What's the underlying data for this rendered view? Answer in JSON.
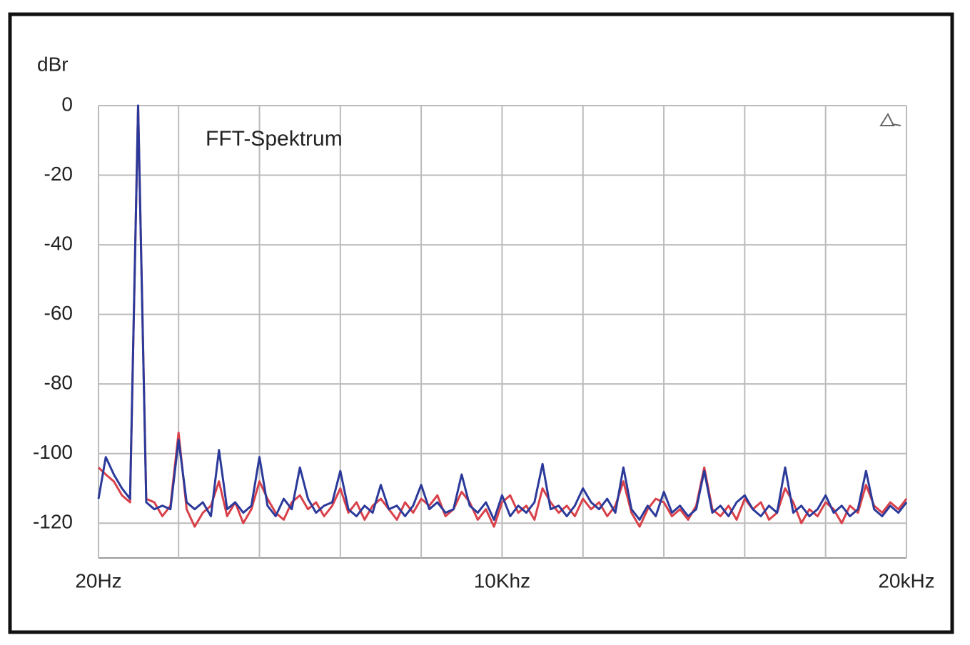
{
  "chart_data": {
    "type": "line",
    "title": "FFT-Spektrum",
    "y_label": "dBr",
    "x": [
      20,
      200,
      400,
      600,
      800,
      1000,
      1200,
      1400,
      1600,
      1800,
      2000,
      2200,
      2400,
      2600,
      2800,
      3000,
      3200,
      3400,
      3600,
      3800,
      4000,
      4200,
      4400,
      4600,
      4800,
      5000,
      5200,
      5400,
      5600,
      5800,
      6000,
      6200,
      6400,
      6600,
      6800,
      7000,
      7200,
      7400,
      7600,
      7800,
      8000,
      8200,
      8400,
      8600,
      8800,
      9000,
      9200,
      9400,
      9600,
      9800,
      10000,
      10200,
      10400,
      10600,
      10800,
      11000,
      11200,
      11400,
      11600,
      11800,
      12000,
      12200,
      12400,
      12600,
      12800,
      13000,
      13200,
      13400,
      13600,
      13800,
      14000,
      14200,
      14400,
      14600,
      14800,
      15000,
      15200,
      15400,
      15600,
      15800,
      16000,
      16200,
      16400,
      16600,
      16800,
      17000,
      17200,
      17400,
      17600,
      17800,
      18000,
      18200,
      18400,
      18600,
      18800,
      19000,
      19200,
      19400,
      19600,
      19800,
      20000
    ],
    "series": [
      {
        "color": "#d9414a",
        "values": [
          -104,
          -106,
          -108,
          -112,
          -114,
          0,
          -113,
          -114,
          -118,
          -115,
          -94,
          -116,
          -121,
          -117,
          -115,
          -108,
          -118,
          -114,
          -120,
          -116,
          -108,
          -113,
          -117,
          -119,
          -114,
          -112,
          -116,
          -114,
          -118,
          -115,
          -110,
          -117,
          -114,
          -119,
          -115,
          -113,
          -116,
          -119,
          -114,
          -117,
          -113,
          -115,
          -112,
          -118,
          -116,
          -111,
          -114,
          -119,
          -116,
          -121,
          -114,
          -112,
          -117,
          -115,
          -119,
          -110,
          -114,
          -117,
          -115,
          -118,
          -113,
          -116,
          -114,
          -118,
          -115,
          -108,
          -117,
          -121,
          -116,
          -113,
          -114,
          -118,
          -116,
          -119,
          -115,
          -104,
          -116,
          -118,
          -115,
          -119,
          -113,
          -116,
          -114,
          -119,
          -117,
          -110,
          -114,
          -120,
          -116,
          -118,
          -114,
          -116,
          -120,
          -115,
          -117,
          -109,
          -115,
          -117,
          -114,
          -116,
          -113
        ]
      },
      {
        "color": "#2b3a9a",
        "values": [
          -113,
          -101,
          -106,
          -110,
          -113,
          0,
          -114,
          -116,
          -115,
          -116,
          -96,
          -114,
          -116,
          -114,
          -118,
          -99,
          -116,
          -114,
          -117,
          -115,
          -101,
          -115,
          -118,
          -113,
          -116,
          -104,
          -113,
          -117,
          -115,
          -114,
          -105,
          -116,
          -118,
          -115,
          -117,
          -109,
          -116,
          -115,
          -118,
          -115,
          -109,
          -116,
          -114,
          -117,
          -116,
          -106,
          -115,
          -117,
          -114,
          -119,
          -112,
          -118,
          -115,
          -117,
          -114,
          -103,
          -116,
          -115,
          -118,
          -115,
          -110,
          -114,
          -116,
          -113,
          -117,
          -104,
          -116,
          -119,
          -115,
          -118,
          -111,
          -117,
          -115,
          -118,
          -116,
          -105,
          -117,
          -115,
          -118,
          -114,
          -112,
          -116,
          -118,
          -115,
          -117,
          -104,
          -117,
          -115,
          -118,
          -116,
          -112,
          -117,
          -115,
          -118,
          -116,
          -105,
          -116,
          -118,
          -115,
          -117,
          -114
        ]
      }
    ],
    "xlim": [
      20,
      20000
    ],
    "xticks": [
      {
        "value": 20,
        "label": "20Hz"
      },
      {
        "value": 10000,
        "label": "10Khz"
      },
      {
        "value": 20000,
        "label": "20kHz"
      }
    ],
    "xgrid": [
      2000,
      4000,
      6000,
      8000,
      12000,
      14000,
      16000,
      18000
    ],
    "ylim": [
      -130,
      0
    ],
    "yticks": [
      0,
      -20,
      -40,
      -60,
      -80,
      -100,
      -120
    ],
    "grid": true
  }
}
